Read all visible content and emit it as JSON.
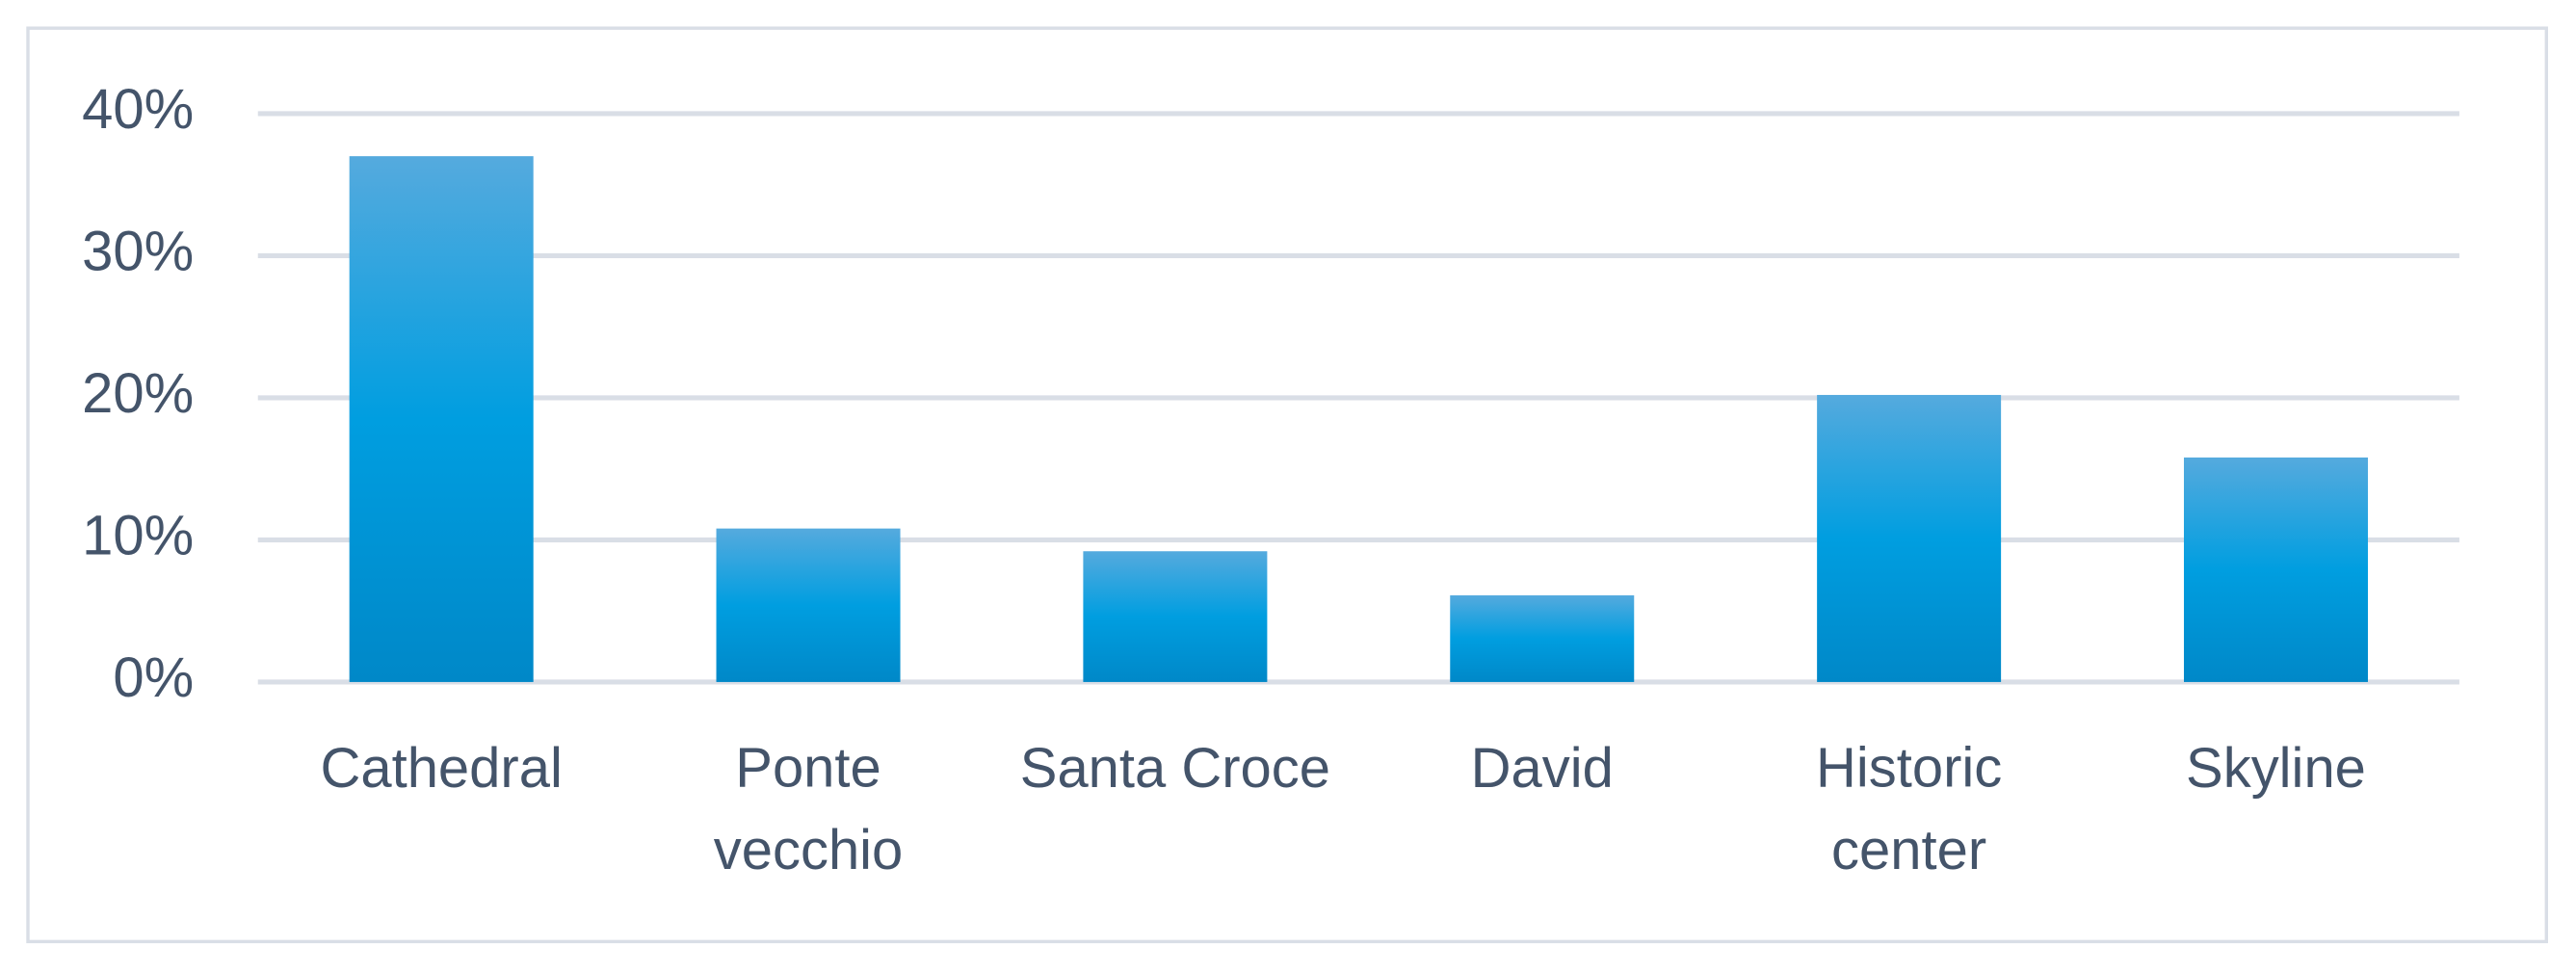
{
  "chart_data": {
    "type": "bar",
    "categories": [
      "Cathedral",
      "Ponte vecchio",
      "Santa Croce",
      "David",
      "Historic center",
      "Skyline"
    ],
    "values": [
      37.0,
      10.8,
      9.2,
      6.1,
      20.2,
      15.8
    ],
    "color": "#009ee0",
    "ylim": [
      0,
      40
    ],
    "yticks": [
      {
        "value": 0,
        "label": "0%"
      },
      {
        "value": 10,
        "label": "10%"
      },
      {
        "value": 20,
        "label": "20%"
      },
      {
        "value": 30,
        "label": "30%"
      },
      {
        "value": 40,
        "label": "40%"
      }
    ],
    "grid": true
  }
}
